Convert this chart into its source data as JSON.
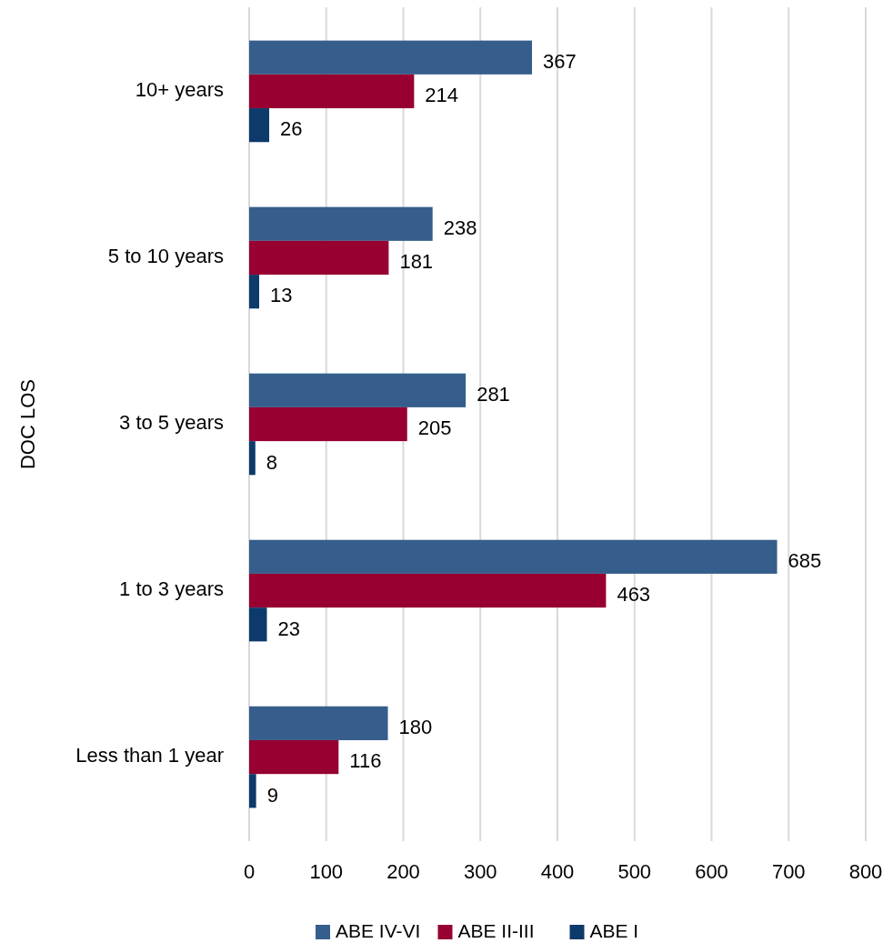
{
  "chart_data": {
    "type": "bar",
    "orientation": "horizontal",
    "ylabel": "DOC LOS",
    "categories": [
      "10+ years",
      "5 to 10 years",
      "3 to 5 years",
      "1 to 3 years",
      "Less than 1 year"
    ],
    "series": [
      {
        "name": "ABE IV-VI",
        "color": "#365e8c",
        "values": [
          367,
          238,
          281,
          685,
          180
        ]
      },
      {
        "name": "ABE II-III",
        "color": "#970031",
        "values": [
          214,
          181,
          205,
          463,
          116
        ]
      },
      {
        "name": "ABE I",
        "color": "#0c3a6a",
        "values": [
          26,
          13,
          8,
          23,
          9
        ]
      }
    ],
    "xlim": [
      0,
      800
    ],
    "xticks": [
      0,
      100,
      200,
      300,
      400,
      500,
      600,
      700,
      800
    ],
    "grid": "x",
    "legend": "bottom",
    "data_labels": true
  }
}
